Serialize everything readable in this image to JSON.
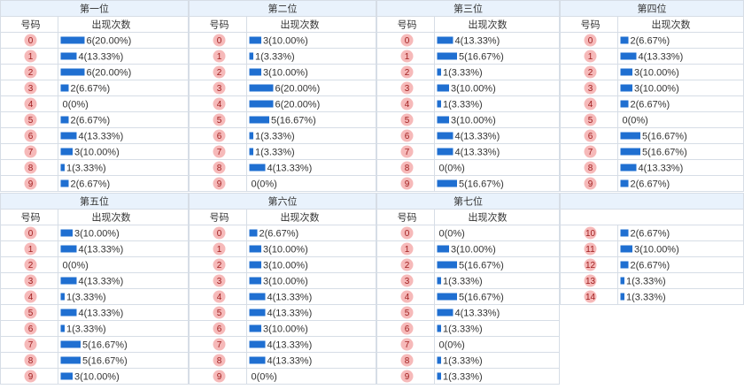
{
  "panels": [
    {
      "title": "第一位",
      "header": [
        "号码",
        "出现次数"
      ],
      "numbers": [
        "0",
        "1",
        "2",
        "3",
        "4",
        "5",
        "6",
        "7",
        "8",
        "9"
      ],
      "counts": [
        6,
        4,
        6,
        2,
        0,
        2,
        4,
        3,
        1,
        2
      ],
      "labels": [
        "6(20.00%)",
        "4(13.33%)",
        "6(20.00%)",
        "2(6.67%)",
        "0(0%)",
        "2(6.67%)",
        "4(13.33%)",
        "3(10.00%)",
        "1(3.33%)",
        "2(6.67%)"
      ]
    },
    {
      "title": "第二位",
      "header": [
        "号码",
        "出现次数"
      ],
      "numbers": [
        "0",
        "1",
        "2",
        "3",
        "4",
        "5",
        "6",
        "7",
        "8",
        "9"
      ],
      "counts": [
        3,
        1,
        3,
        6,
        6,
        5,
        1,
        1,
        4,
        0
      ],
      "labels": [
        "3(10.00%)",
        "1(3.33%)",
        "3(10.00%)",
        "6(20.00%)",
        "6(20.00%)",
        "5(16.67%)",
        "1(3.33%)",
        "1(3.33%)",
        "4(13.33%)",
        "0(0%)"
      ]
    },
    {
      "title": "第三位",
      "header": [
        "号码",
        "出现次数"
      ],
      "numbers": [
        "0",
        "1",
        "2",
        "3",
        "4",
        "5",
        "6",
        "7",
        "8",
        "9"
      ],
      "counts": [
        4,
        5,
        1,
        3,
        1,
        3,
        4,
        4,
        0,
        5
      ],
      "labels": [
        "4(13.33%)",
        "5(16.67%)",
        "1(3.33%)",
        "3(10.00%)",
        "1(3.33%)",
        "3(10.00%)",
        "4(13.33%)",
        "4(13.33%)",
        "0(0%)",
        "5(16.67%)"
      ]
    },
    {
      "title": "第四位",
      "header": [
        "号码",
        "出现次数"
      ],
      "numbers": [
        "0",
        "1",
        "2",
        "3",
        "4",
        "5",
        "6",
        "7",
        "8",
        "9"
      ],
      "counts": [
        2,
        4,
        3,
        3,
        2,
        0,
        5,
        5,
        4,
        2
      ],
      "labels": [
        "2(6.67%)",
        "4(13.33%)",
        "3(10.00%)",
        "3(10.00%)",
        "2(6.67%)",
        "0(0%)",
        "5(16.67%)",
        "5(16.67%)",
        "4(13.33%)",
        "2(6.67%)"
      ]
    },
    {
      "title": "第五位",
      "header": [
        "号码",
        "出现次数"
      ],
      "numbers": [
        "0",
        "1",
        "2",
        "3",
        "4",
        "5",
        "6",
        "7",
        "8",
        "9"
      ],
      "counts": [
        3,
        4,
        0,
        4,
        1,
        4,
        1,
        5,
        5,
        3
      ],
      "labels": [
        "3(10.00%)",
        "4(13.33%)",
        "0(0%)",
        "4(13.33%)",
        "1(3.33%)",
        "4(13.33%)",
        "1(3.33%)",
        "5(16.67%)",
        "5(16.67%)",
        "3(10.00%)"
      ]
    },
    {
      "title": "第六位",
      "header": [
        "号码",
        "出现次数"
      ],
      "numbers": [
        "0",
        "1",
        "2",
        "3",
        "4",
        "5",
        "6",
        "7",
        "8",
        "9"
      ],
      "counts": [
        2,
        3,
        3,
        3,
        4,
        4,
        3,
        4,
        4,
        0
      ],
      "labels": [
        "2(6.67%)",
        "3(10.00%)",
        "3(10.00%)",
        "3(10.00%)",
        "4(13.33%)",
        "4(13.33%)",
        "3(10.00%)",
        "4(13.33%)",
        "4(13.33%)",
        "0(0%)"
      ]
    },
    {
      "title": "第七位",
      "header": [
        "号码",
        "出现次数"
      ],
      "numbers": [
        "0",
        "1",
        "2",
        "3",
        "4",
        "5",
        "6",
        "7",
        "8",
        "9"
      ],
      "counts": [
        0,
        3,
        5,
        1,
        5,
        4,
        1,
        0,
        1,
        1
      ],
      "labels": [
        "0(0%)",
        "3(10.00%)",
        "5(16.67%)",
        "1(3.33%)",
        "5(16.67%)",
        "4(13.33%)",
        "1(3.33%)",
        "0(0%)",
        "1(3.33%)",
        "1(3.33%)"
      ]
    },
    {
      "numbers": [
        "10",
        "11",
        "12",
        "13",
        "14"
      ],
      "counts": [
        2,
        3,
        2,
        1,
        1
      ],
      "labels": [
        "2(6.67%)",
        "3(10.00%)",
        "2(6.67%)",
        "1(3.33%)",
        "1(3.33%)"
      ]
    }
  ]
}
